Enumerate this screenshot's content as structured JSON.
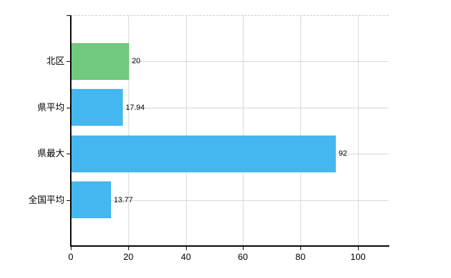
{
  "chart_data": {
    "type": "bar",
    "orientation": "horizontal",
    "title": "",
    "categories": [
      "北区",
      "県平均",
      "県最大",
      "全国平均"
    ],
    "values": [
      20,
      17.94,
      92,
      13.77
    ],
    "value_labels": [
      "20",
      "17.94",
      "92",
      "13.77"
    ],
    "bar_colors": [
      "#70c97e",
      "#45b7f0",
      "#45b7f0",
      "#45b7f0"
    ],
    "x_ticks": [
      0,
      20,
      40,
      60,
      80,
      100
    ],
    "x_tick_labels": [
      "0",
      "20",
      "40",
      "60",
      "80",
      "100"
    ],
    "xlim": [
      0,
      110.6
    ],
    "ylabel": "",
    "xlabel": "",
    "grid": true,
    "legend": "none",
    "colors": {
      "grid_line_vertical": "#d9d9d9",
      "grid_line_horizontal": "#d6d6d6",
      "axis_line": "#000000",
      "plot_top_border": "#c9c9c9",
      "text": "#000000",
      "background": "#ffffff"
    }
  }
}
